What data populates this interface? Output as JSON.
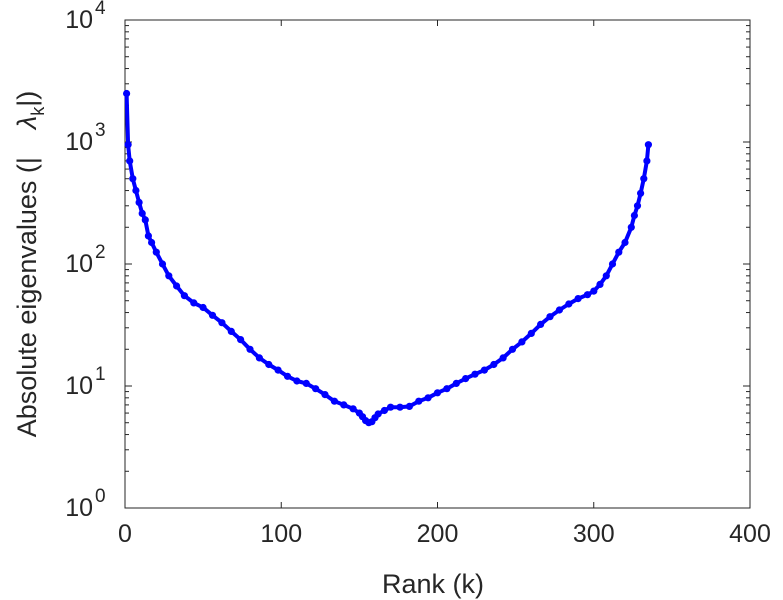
{
  "chart_data": {
    "type": "line",
    "title": "",
    "xlabel": "Rank (k)",
    "ylabel": {
      "prefix": "Absolute eigenvalues (|",
      "symbol": "λ",
      "subscript": "k",
      "suffix": "|)"
    },
    "xlim": [
      0,
      400
    ],
    "ylim": [
      1,
      10000
    ],
    "yscale": "log",
    "grid": false,
    "legend": "none",
    "line_color": "#0000ff",
    "marker": "circle",
    "x_ticks": [
      "0",
      "100",
      "200",
      "300",
      "400"
    ],
    "y_ticks": [
      {
        "base": "10",
        "exp": "0"
      },
      {
        "base": "10",
        "exp": "1"
      },
      {
        "base": "10",
        "exp": "2"
      },
      {
        "base": "10",
        "exp": "3"
      },
      {
        "base": "10",
        "exp": "4"
      }
    ],
    "series": [
      {
        "x": [
          1,
          2,
          3,
          5,
          7,
          9,
          11,
          13,
          15,
          17,
          20,
          24,
          28,
          33,
          38,
          44,
          50,
          56,
          62,
          68,
          74,
          80,
          86,
          92,
          98,
          104,
          110,
          116,
          122,
          128,
          134,
          140,
          146,
          150,
          152,
          154,
          156,
          158,
          160,
          162,
          166,
          170,
          176,
          182,
          188,
          194,
          200,
          206,
          212,
          218,
          224,
          230,
          236,
          242,
          248,
          254,
          260,
          266,
          272,
          278,
          284,
          290,
          296,
          300,
          304,
          308,
          312,
          316,
          320,
          324,
          326,
          328,
          330,
          332,
          334,
          335
        ],
        "y": [
          2500,
          950,
          700,
          500,
          400,
          320,
          260,
          230,
          170,
          150,
          125,
          100,
          80,
          66,
          55,
          48,
          44,
          38,
          33,
          28,
          24,
          20,
          17,
          15,
          13.5,
          12,
          11,
          10.5,
          9.5,
          8.5,
          7.5,
          7,
          6.5,
          6,
          5.6,
          5.2,
          5,
          5.1,
          5.5,
          5.9,
          6.3,
          6.7,
          6.7,
          6.8,
          7.5,
          8,
          8.8,
          9.5,
          10.5,
          11.5,
          12.5,
          13.5,
          15,
          17,
          20,
          23,
          27,
          32,
          37,
          42,
          47,
          52,
          56,
          60,
          68,
          80,
          100,
          125,
          150,
          200,
          250,
          300,
          380,
          500,
          700,
          950
        ]
      }
    ]
  }
}
